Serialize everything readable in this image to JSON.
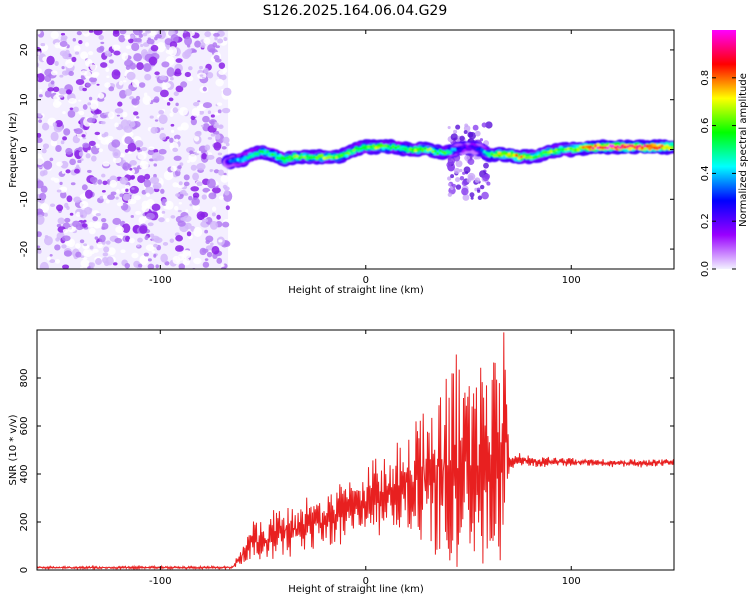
{
  "page_title": "S126.2025.164.06.04.G29",
  "chart_data": [
    {
      "type": "heatmap",
      "xlabel": "Height of straight line (km)",
      "ylabel": "Frequency (Hz)",
      "xlim": [
        -160,
        150
      ],
      "ylim": [
        -24,
        24
      ],
      "xticks": [
        -100,
        0,
        100
      ],
      "yticks": [
        -20,
        -10,
        0,
        10,
        20
      ],
      "colorbar": {
        "label": "Normalized spectral amplitude",
        "range": [
          0,
          1
        ],
        "ticks": [
          "0.0",
          "0.2",
          "0.4",
          "0.6",
          "0.8"
        ],
        "colormap": [
          "#f2f2ff",
          "#9900ff",
          "#0000ff",
          "#00ffff",
          "#00ff00",
          "#ffff00",
          "#ff0000",
          "#ff00ff"
        ]
      },
      "noise_region": {
        "x": [
          -160,
          -67
        ],
        "y": [
          -24,
          24
        ]
      },
      "ridge": {
        "x": [
          -67,
          -60,
          -55,
          -50,
          -45,
          -40,
          -35,
          -30,
          -25,
          -20,
          -15,
          -10,
          -5,
          0,
          5,
          10,
          15,
          20,
          25,
          30,
          35,
          40,
          45,
          50,
          55,
          60,
          65,
          70,
          75,
          80,
          85,
          90,
          95,
          100,
          110,
          120,
          130,
          140,
          150
        ],
        "y": [
          -2.5,
          -2,
          -1,
          -0.5,
          -1,
          -2,
          -1.5,
          -1.5,
          -1.5,
          -1.5,
          -1.5,
          -1,
          0,
          0.5,
          0.5,
          0.5,
          0.5,
          0,
          0,
          0,
          -0.5,
          -0.5,
          0,
          0.5,
          0,
          -1,
          -1,
          -1,
          -1.5,
          -1.5,
          -1,
          -0.5,
          0,
          0,
          0.5,
          0.5,
          0.5,
          0.5,
          0.5
        ],
        "amplitude": [
          0.3,
          0.45,
          0.5,
          0.55,
          0.55,
          0.6,
          0.65,
          0.6,
          0.6,
          0.65,
          0.65,
          0.6,
          0.6,
          0.6,
          0.7,
          0.6,
          0.55,
          0.55,
          0.65,
          0.65,
          0.6,
          0.55,
          0.3,
          0.2,
          0.3,
          0.55,
          0.7,
          0.75,
          0.75,
          0.6,
          0.6,
          0.65,
          0.6,
          0.65,
          0.9,
          0.95,
          0.95,
          0.9,
          0.75
        ]
      },
      "disturbance": {
        "x": [
          40,
          60
        ],
        "y": [
          -10,
          5
        ]
      }
    },
    {
      "type": "line",
      "xlabel": "Height of straight line (km)",
      "ylabel": "SNR (10 * v/v)",
      "xlim": [
        -160,
        150
      ],
      "ylim": [
        0,
        1000
      ],
      "xticks": [
        -100,
        0,
        100
      ],
      "yticks": [
        0,
        200,
        400,
        600,
        800
      ],
      "color": "#e82020",
      "x": [
        -160,
        -140,
        -120,
        -100,
        -80,
        -65,
        -60,
        -55,
        -50,
        -45,
        -40,
        -35,
        -30,
        -25,
        -20,
        -15,
        -10,
        -5,
        0,
        5,
        10,
        15,
        20,
        25,
        30,
        35,
        40,
        45,
        50,
        55,
        60,
        65,
        68,
        70,
        75,
        80,
        90,
        100,
        110,
        120,
        130,
        140,
        150
      ],
      "y": [
        10,
        10,
        10,
        10,
        10,
        10,
        60,
        120,
        130,
        140,
        150,
        160,
        180,
        200,
        200,
        220,
        240,
        270,
        290,
        310,
        320,
        340,
        360,
        380,
        400,
        420,
        420,
        440,
        430,
        450,
        460,
        480,
        470,
        450,
        460,
        450,
        450,
        450,
        450,
        445,
        445,
        445,
        450
      ],
      "spread": [
        5,
        5,
        5,
        5,
        5,
        5,
        40,
        80,
        90,
        95,
        95,
        100,
        100,
        110,
        110,
        110,
        120,
        120,
        130,
        140,
        150,
        180,
        210,
        260,
        320,
        360,
        380,
        400,
        400,
        400,
        420,
        430,
        400,
        30,
        25,
        25,
        20,
        18,
        15,
        15,
        15,
        15,
        15
      ],
      "peak": {
        "x": 67,
        "y": 990
      }
    }
  ]
}
